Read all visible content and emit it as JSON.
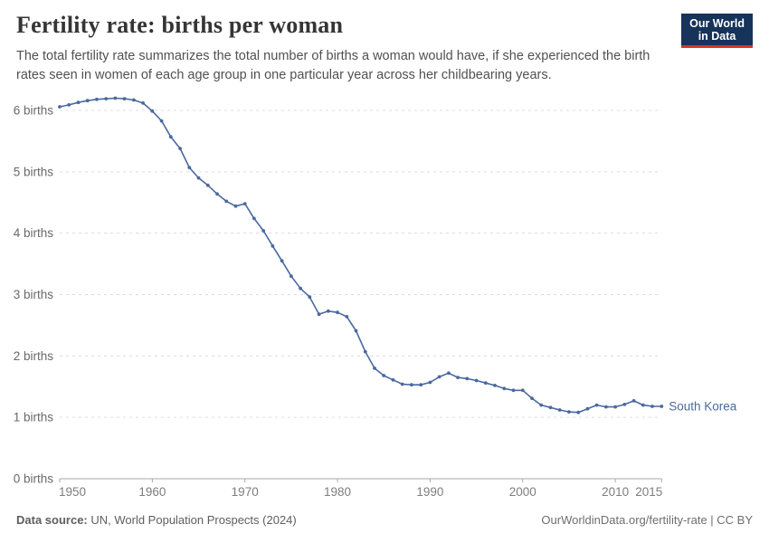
{
  "header": {
    "title": "Fertility rate: births per woman",
    "subtitle": "The total fertility rate summarizes the total number of births a woman would have, if she experienced the birth rates seen in women of each age group in one particular year across her childbearing years."
  },
  "logo": {
    "line1": "Our World",
    "line2": "in Data"
  },
  "chart_data": {
    "type": "line",
    "title": "Fertility rate: births per woman",
    "xlabel": "",
    "ylabel": "births per woman",
    "ylim": [
      0,
      6.2
    ],
    "grid": "horizontal-dashed",
    "legend": "end-of-line-label",
    "x_ticks": [
      1950,
      1960,
      1970,
      1980,
      1990,
      2000,
      2010,
      2015
    ],
    "y_ticks": [
      {
        "value": 0,
        "label": "0 births"
      },
      {
        "value": 1,
        "label": "1 births"
      },
      {
        "value": 2,
        "label": "2 births"
      },
      {
        "value": 3,
        "label": "3 births"
      },
      {
        "value": 4,
        "label": "4 births"
      },
      {
        "value": 5,
        "label": "5 births"
      },
      {
        "value": 6,
        "label": "6 births"
      }
    ],
    "x": [
      1950,
      1951,
      1952,
      1953,
      1954,
      1955,
      1956,
      1957,
      1958,
      1959,
      1960,
      1961,
      1962,
      1963,
      1964,
      1965,
      1966,
      1967,
      1968,
      1969,
      1970,
      1971,
      1972,
      1973,
      1974,
      1975,
      1976,
      1977,
      1978,
      1979,
      1980,
      1981,
      1982,
      1983,
      1984,
      1985,
      1986,
      1987,
      1988,
      1989,
      1990,
      1991,
      1992,
      1993,
      1994,
      1995,
      1996,
      1997,
      1998,
      1999,
      2000,
      2001,
      2002,
      2003,
      2004,
      2005,
      2006,
      2007,
      2008,
      2009,
      2010,
      2011,
      2012,
      2013,
      2014,
      2015
    ],
    "series": [
      {
        "name": "South Korea",
        "color": "#4a699f",
        "values": [
          6.06,
          6.09,
          6.13,
          6.16,
          6.18,
          6.19,
          6.2,
          6.19,
          6.17,
          6.12,
          5.99,
          5.83,
          5.57,
          5.38,
          5.07,
          4.9,
          4.78,
          4.64,
          4.52,
          4.44,
          4.48,
          4.24,
          4.04,
          3.79,
          3.55,
          3.3,
          3.1,
          2.96,
          2.68,
          2.73,
          2.71,
          2.64,
          2.41,
          2.07,
          1.8,
          1.68,
          1.61,
          1.54,
          1.53,
          1.53,
          1.57,
          1.66,
          1.72,
          1.65,
          1.63,
          1.6,
          1.56,
          1.52,
          1.47,
          1.44,
          1.44,
          1.31,
          1.2,
          1.16,
          1.12,
          1.09,
          1.08,
          1.14,
          1.2,
          1.17,
          1.17,
          1.21,
          1.27,
          1.2,
          1.18,
          1.18
        ]
      }
    ]
  },
  "footer": {
    "source_label": "Data source:",
    "source_text": " UN, World Population Prospects (2024)",
    "right_text": "OurWorldinData.org/fertility-rate | CC BY"
  },
  "colors": {
    "line": "#4a699f",
    "grid": "#dcdcdc",
    "axis": "#a8a8a8",
    "y_tick_text": "#696969",
    "x_tick_text": "#7e7e7e",
    "logo_bg": "#16335a",
    "logo_red": "#d5352b"
  }
}
